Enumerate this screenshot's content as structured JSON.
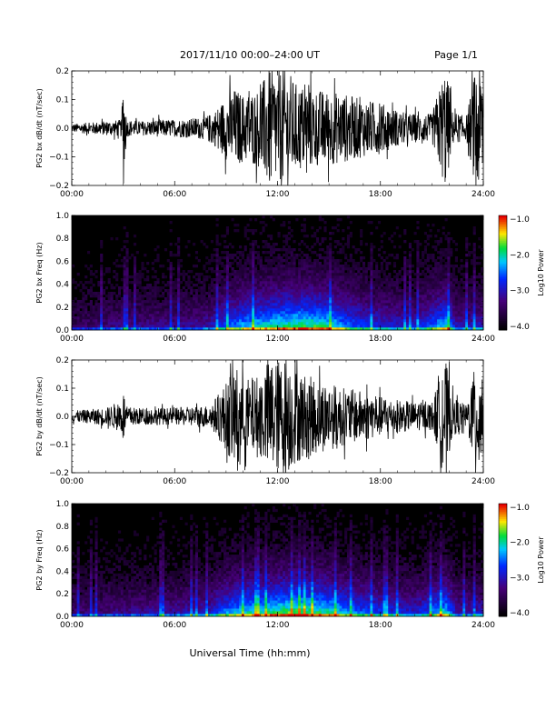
{
  "header": {
    "title": "2017/11/10   00:00–24:00 UT",
    "page": "Page 1/1"
  },
  "xaxis_label": "Universal Time (hh:mm)",
  "chart_data": [
    {
      "type": "line",
      "ylabel": "PG2 bx dB/dt (nT/sec)",
      "xlim": [
        0,
        24
      ],
      "ylim": [
        -0.2,
        0.2
      ],
      "x_ticks": [
        "00:00",
        "06:00",
        "12:00",
        "18:00",
        "24:00"
      ],
      "y_ticks": [
        "0.2",
        "0.1",
        "0.0",
        "−0.1",
        "−0.2"
      ],
      "envelope": {
        "hours": [
          0,
          1,
          2,
          2.9,
          3.0,
          3.2,
          4,
          5,
          6,
          7,
          7.8,
          8.3,
          9,
          9.5,
          10,
          11,
          11.5,
          12,
          12.5,
          13,
          14,
          15,
          16,
          17,
          18,
          19,
          20,
          21,
          21.8,
          22.2,
          23,
          23.6,
          24
        ],
        "amplitude": [
          0.015,
          0.02,
          0.025,
          0.03,
          0.22,
          0.03,
          0.025,
          0.03,
          0.03,
          0.035,
          0.04,
          0.06,
          0.11,
          0.14,
          0.12,
          0.14,
          0.22,
          0.2,
          0.22,
          0.16,
          0.14,
          0.13,
          0.12,
          0.1,
          0.09,
          0.06,
          0.05,
          0.05,
          0.22,
          0.06,
          0.04,
          0.22,
          0.2
        ]
      }
    },
    {
      "type": "heatmap",
      "ylabel": "PG2 bx Freq (Hz)",
      "xlim": [
        0,
        24
      ],
      "ylim": [
        0,
        1.0
      ],
      "x_ticks": [
        "00:00",
        "06:00",
        "12:00",
        "18:00",
        "24:00"
      ],
      "y_ticks": [
        "1.0",
        "0.8",
        "0.6",
        "0.4",
        "0.2",
        "0.0"
      ],
      "colorbar": {
        "label": "Log10 Power",
        "range": [
          -4.0,
          -1.0
        ],
        "ticks": [
          "−1.0",
          "−2.0",
          "−3.0",
          "−4.0"
        ]
      },
      "activity": {
        "hours": [
          0,
          3,
          6,
          8,
          9,
          10,
          11,
          12,
          13,
          14,
          15,
          16,
          17,
          18,
          20,
          21.8,
          22.5,
          24
        ],
        "level": [
          0.2,
          0.3,
          0.3,
          0.35,
          0.55,
          0.65,
          0.7,
          0.75,
          0.8,
          0.8,
          0.75,
          0.6,
          0.5,
          0.45,
          0.4,
          0.7,
          0.35,
          0.4
        ]
      }
    },
    {
      "type": "line",
      "ylabel": "PG2 by dB/dt (nT/sec)",
      "xlim": [
        0,
        24
      ],
      "ylim": [
        -0.2,
        0.2
      ],
      "x_ticks": [
        "00:00",
        "06:00",
        "12:00",
        "18:00",
        "24:00"
      ],
      "y_ticks": [
        "0.2",
        "0.1",
        "0.0",
        "−0.1",
        "−0.2"
      ],
      "envelope": {
        "hours": [
          0,
          1,
          2,
          2.9,
          3.0,
          3.2,
          4,
          5,
          6,
          7,
          8,
          8.3,
          9,
          9.5,
          10,
          11,
          11.5,
          12,
          12.5,
          13,
          14,
          15,
          16,
          17,
          18,
          19,
          20,
          21,
          21.8,
          22.2,
          23,
          23.6,
          24
        ],
        "amplitude": [
          0.02,
          0.025,
          0.03,
          0.06,
          0.1,
          0.035,
          0.03,
          0.03,
          0.03,
          0.035,
          0.04,
          0.06,
          0.12,
          0.19,
          0.13,
          0.15,
          0.21,
          0.2,
          0.21,
          0.17,
          0.14,
          0.12,
          0.1,
          0.09,
          0.07,
          0.06,
          0.05,
          0.05,
          0.2,
          0.07,
          0.04,
          0.2,
          0.2
        ]
      }
    },
    {
      "type": "heatmap",
      "ylabel": "PG2 by Freq (Hz)",
      "xlim": [
        0,
        24
      ],
      "ylim": [
        0,
        1.0
      ],
      "x_ticks": [
        "00:00",
        "06:00",
        "12:00",
        "18:00",
        "24:00"
      ],
      "y_ticks": [
        "1.0",
        "0.8",
        "0.6",
        "0.4",
        "0.2",
        "0.0"
      ],
      "colorbar": {
        "label": "Log10 Power",
        "range": [
          -4.0,
          -1.0
        ],
        "ticks": [
          "−1.0",
          "−2.0",
          "−3.0",
          "−4.0"
        ]
      },
      "activity": {
        "hours": [
          0,
          3,
          6,
          8,
          9,
          10,
          11,
          12,
          13,
          14,
          15,
          16,
          17,
          18,
          20,
          21.8,
          22.5,
          24
        ],
        "level": [
          0.25,
          0.3,
          0.35,
          0.4,
          0.6,
          0.7,
          0.75,
          0.8,
          0.85,
          0.8,
          0.75,
          0.65,
          0.55,
          0.5,
          0.4,
          0.7,
          0.35,
          0.4
        ]
      }
    }
  ]
}
